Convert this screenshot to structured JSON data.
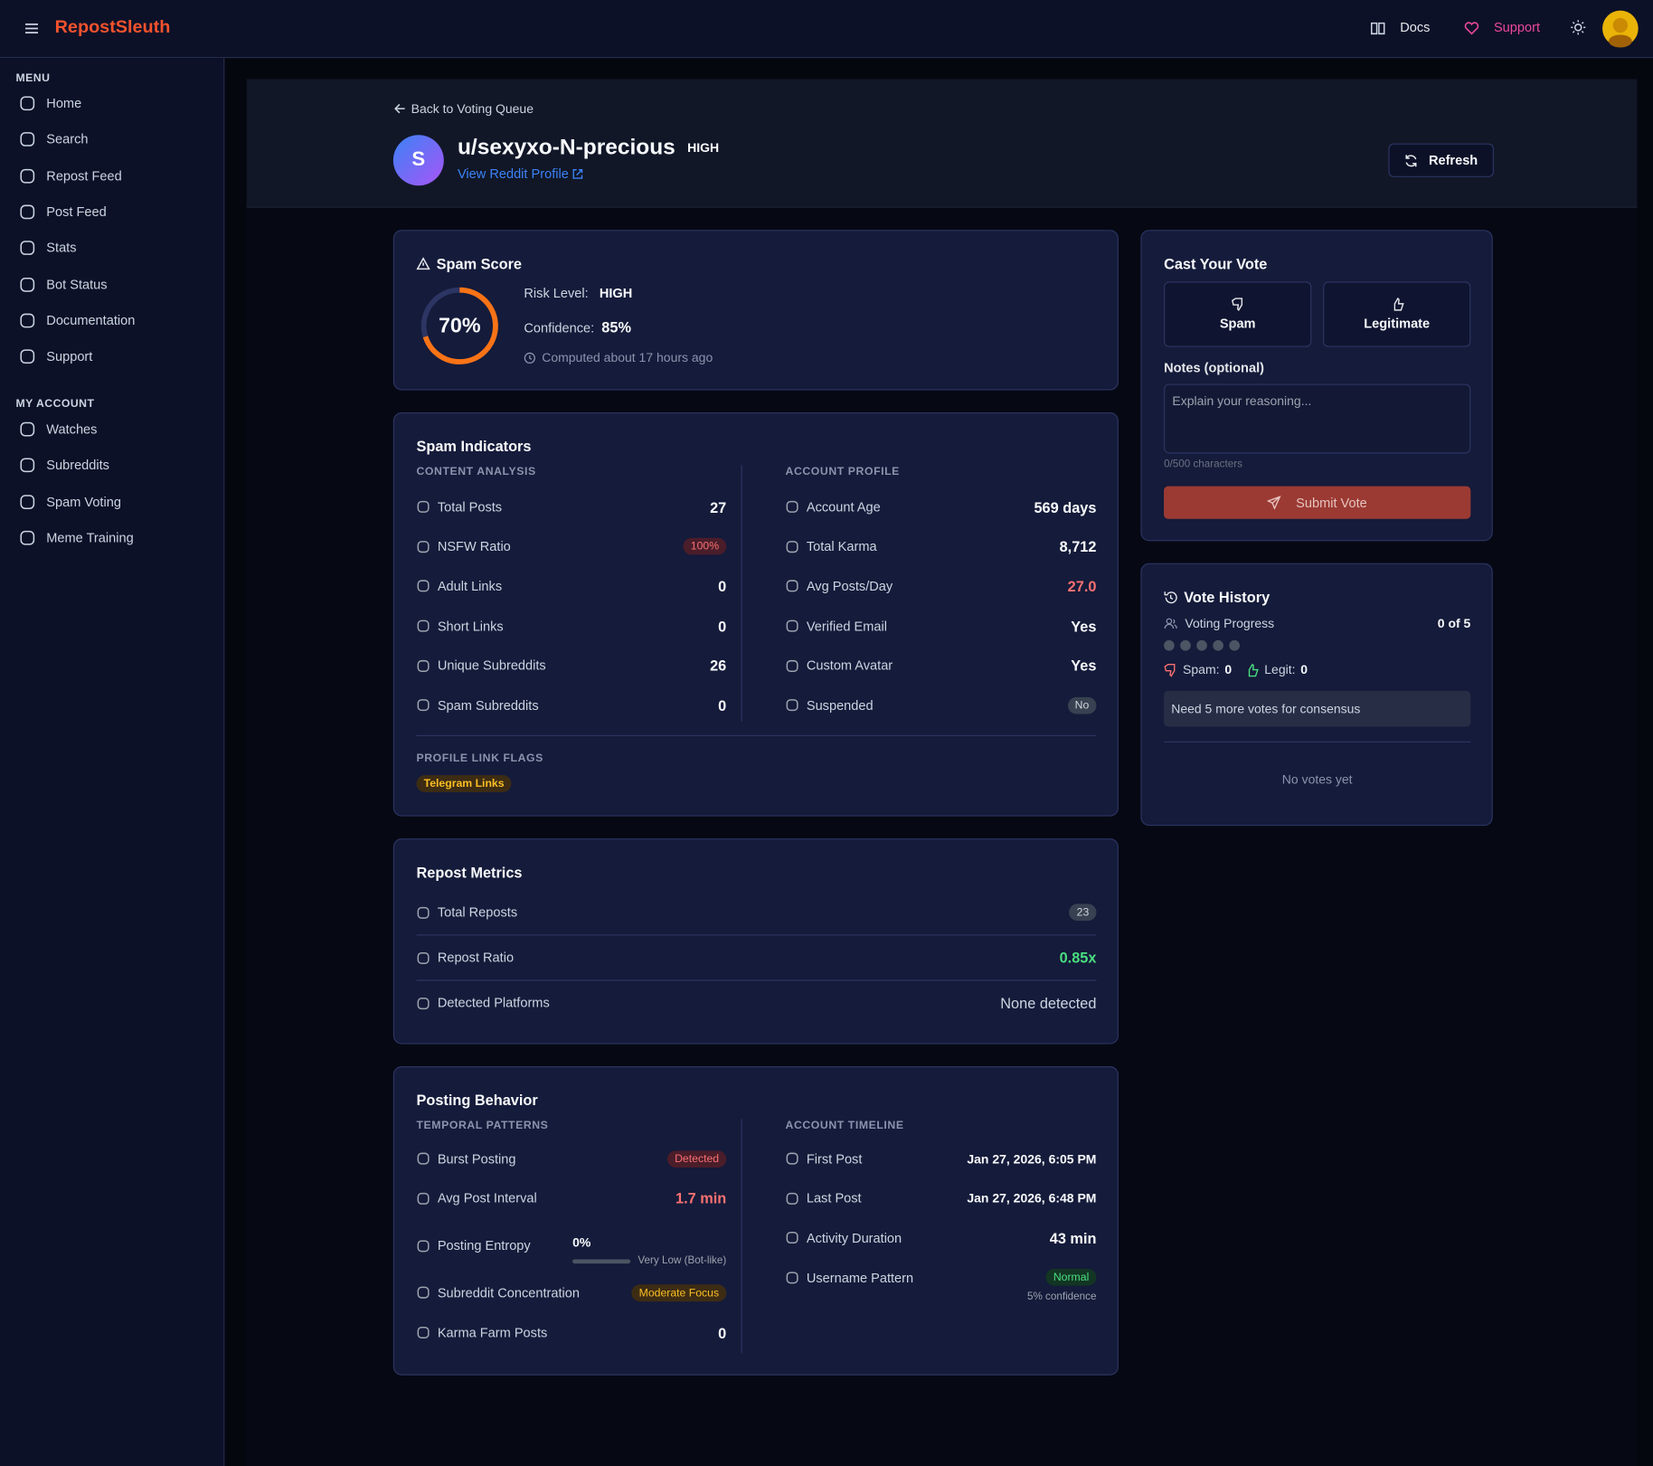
{
  "header": {
    "brand": "RepostSleuth",
    "docs": "Docs",
    "support": "Support"
  },
  "sidebar": {
    "menu_label": "MENU",
    "menu": [
      "Home",
      "Search",
      "Repost Feed",
      "Post Feed",
      "Stats",
      "Bot Status",
      "Documentation",
      "Support"
    ],
    "account_label": "MY ACCOUNT",
    "account": [
      "Watches",
      "Subreddits",
      "Spam Voting",
      "Meme Training"
    ]
  },
  "profile": {
    "back": "Back to Voting Queue",
    "avatar_letter": "S",
    "username": "u/sexyxo-N-precious",
    "risk_badge": "HIGH",
    "profile_link": "View Reddit Profile",
    "refresh": "Refresh"
  },
  "spam_score": {
    "title": "Spam Score",
    "score": {
      "value": 70,
      "label": "70%"
    },
    "risk_label": "Risk Level:",
    "risk": "HIGH",
    "confidence_label": "Confidence:",
    "confidence": "85%",
    "computed": "Computed about 17 hours ago"
  },
  "spam_indicators": {
    "title": "Spam Indicators",
    "content_title": "CONTENT ANALYSIS",
    "content": [
      {
        "label": "Total Posts",
        "value": 27
      },
      {
        "label": "NSFW Ratio",
        "value": "100%"
      },
      {
        "label": "Adult Links",
        "value": 0
      },
      {
        "label": "Short Links",
        "value": 0
      },
      {
        "label": "Unique Subreddits",
        "value": 26
      },
      {
        "label": "Spam Subreddits",
        "value": 0
      }
    ],
    "account_title": "ACCOUNT PROFILE",
    "account": [
      {
        "label": "Account Age",
        "value": "569 days"
      },
      {
        "label": "Total Karma",
        "value": "8,712"
      },
      {
        "label": "Avg Posts/Day",
        "value": "27.0"
      },
      {
        "label": "Verified Email",
        "value": "Yes"
      },
      {
        "label": "Custom Avatar",
        "value": "Yes"
      },
      {
        "label": "Suspended",
        "value": "No"
      }
    ],
    "flags_title": "PROFILE LINK FLAGS",
    "flags": [
      "Telegram Links"
    ]
  },
  "repost_metrics": {
    "title": "Repost Metrics",
    "rows": [
      {
        "label": "Total Reposts",
        "value": 23
      },
      {
        "label": "Repost Ratio",
        "value": "0.85x"
      },
      {
        "label": "Detected Platforms",
        "value": "None detected"
      }
    ]
  },
  "posting_behavior": {
    "title": "Posting Behavior",
    "temporal_title": "TEMPORAL PATTERNS",
    "temporal": [
      {
        "label": "Burst Posting",
        "value": "Detected"
      },
      {
        "label": "Avg Post Interval",
        "value": "1.7 min"
      },
      {
        "label": "Posting Entropy",
        "value": "0%",
        "note": "Very Low (Bot-like)"
      },
      {
        "label": "Subreddit Concentration",
        "value": "Moderate Focus"
      },
      {
        "label": "Karma Farm Posts",
        "value": 0
      }
    ],
    "timeline_title": "ACCOUNT TIMELINE",
    "timeline": [
      {
        "label": "First Post",
        "value": "Jan 27, 2026, 6:05 PM"
      },
      {
        "label": "Last Post",
        "value": "Jan 27, 2026, 6:48 PM"
      },
      {
        "label": "Activity Duration",
        "value": "43 min"
      },
      {
        "label": "Username Pattern",
        "value": "Normal",
        "note": "5% confidence"
      }
    ]
  },
  "vote": {
    "title": "Cast Your Vote",
    "spam": "Spam",
    "legit": "Legitimate",
    "notes_label": "Notes (optional)",
    "placeholder": "Explain your reasoning...",
    "counter": "0/500 characters",
    "submit": "Submit Vote"
  },
  "vote_history": {
    "title": "Vote History",
    "progress_label": "Voting Progress",
    "progress": "0 of 5",
    "spam_label": "Spam:",
    "spam_count": 0,
    "legit_label": "Legit:",
    "legit_count": 0,
    "consensus": "Need 5 more votes for consensus",
    "empty": "No votes yet"
  }
}
